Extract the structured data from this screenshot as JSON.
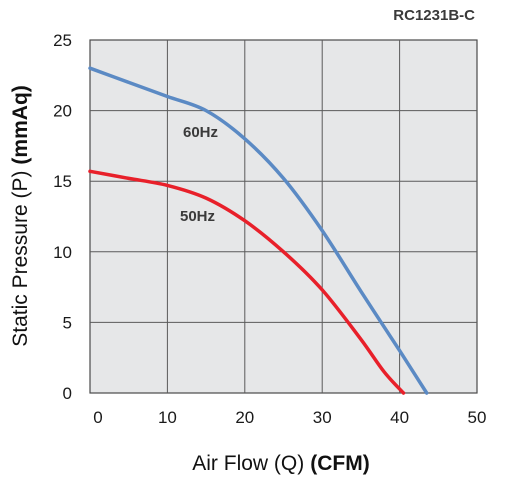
{
  "chart_data": {
    "type": "line",
    "model": "RC1231B-C",
    "xlabel": "Air Flow (Q)",
    "xunit": "(CFM)",
    "ylabel": "Static Pressure (P)",
    "yunit": "(mmAq)",
    "xlim": [
      0,
      50
    ],
    "ylim": [
      0,
      25
    ],
    "xticks": [
      "0",
      "10",
      "20",
      "30",
      "40",
      "50"
    ],
    "yticks": [
      "0",
      "5",
      "10",
      "15",
      "20",
      "25"
    ],
    "grid": true,
    "series": [
      {
        "name": "60Hz",
        "color": "#5b8ac4",
        "x": [
          0,
          5,
          10,
          15,
          20,
          25,
          30,
          35,
          40,
          43.5
        ],
        "y": [
          23.0,
          22.0,
          21.0,
          20.0,
          18.0,
          15.2,
          11.5,
          7.2,
          3.0,
          0
        ]
      },
      {
        "name": "50Hz",
        "color": "#e8202a",
        "x": [
          0,
          5,
          10,
          15,
          20,
          25,
          30,
          35,
          38,
          40.5
        ],
        "y": [
          15.7,
          15.2,
          14.7,
          13.8,
          12.2,
          10.0,
          7.3,
          3.8,
          1.5,
          0
        ]
      }
    ]
  }
}
